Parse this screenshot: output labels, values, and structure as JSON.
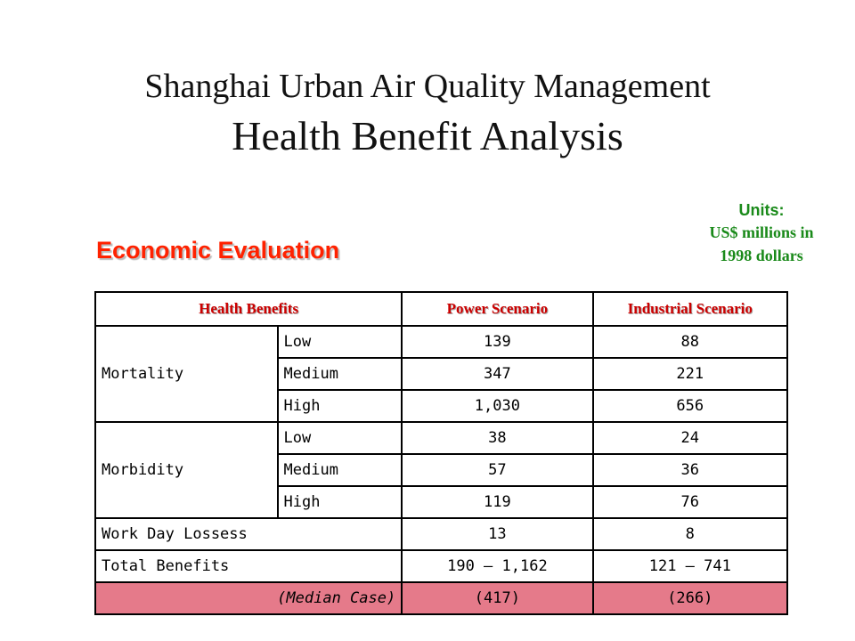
{
  "title": {
    "line1": "Shanghai Urban Air Quality Management",
    "line2": "Health Benefit Analysis"
  },
  "subtitle": "Economic Evaluation",
  "units": {
    "label": "Units:",
    "line1": "US$ millions in",
    "line2": "1998 dollars"
  },
  "table": {
    "headers": [
      "Health Benefits",
      "Power Scenario",
      "Industrial Scenario"
    ],
    "mortality": {
      "label": "Mortality",
      "rows": [
        {
          "level": "Low",
          "power": "139",
          "industrial": "88"
        },
        {
          "level": "Medium",
          "power": "347",
          "industrial": "221"
        },
        {
          "level": "High",
          "power": "1,030",
          "industrial": "656"
        }
      ]
    },
    "morbidity": {
      "label": "Morbidity",
      "rows": [
        {
          "level": "Low",
          "power": "38",
          "industrial": "24"
        },
        {
          "level": "Medium",
          "power": "57",
          "industrial": "36"
        },
        {
          "level": "High",
          "power": "119",
          "industrial": "76"
        }
      ]
    },
    "work_day": {
      "label": "Work Day Lossess",
      "power": "13",
      "industrial": "8"
    },
    "total": {
      "label": "Total Benefits",
      "power": "190 – 1,162",
      "industrial": "121 – 741"
    },
    "median": {
      "label": "(Median Case)",
      "power": "(417)",
      "industrial": "(266)"
    },
    "median_color": "#e57a8a"
  },
  "colors": {
    "subtitle": "#ff2200",
    "header_text": "#cc0000",
    "units_text": "#1a8a1a"
  }
}
